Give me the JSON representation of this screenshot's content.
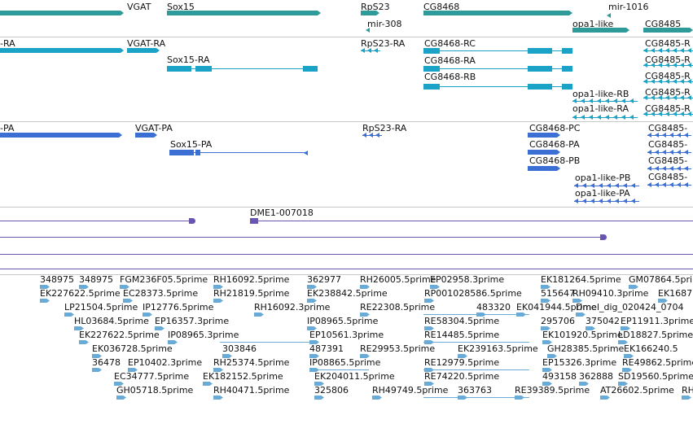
{
  "colors": {
    "genes": "#2e9a9a",
    "mrna": "#1aa3c6",
    "protein": "#3b6fd4",
    "misc": "#6a55b0",
    "est": "#6aaad6"
  },
  "tracks": {
    "genes": {
      "features": [
        {
          "name": "VGAT",
          "label": "VGAT"
        },
        {
          "name": "Sox15",
          "label": "Sox15"
        },
        {
          "name": "RpS23",
          "label": "RpS23"
        },
        {
          "name": "mir-308",
          "label": "mir-308"
        },
        {
          "name": "CG8468",
          "label": "CG8468"
        },
        {
          "name": "mir-1016",
          "label": "mir-1016"
        },
        {
          "name": "opa1-like",
          "label": "opa1-like"
        },
        {
          "name": "CG8485",
          "label": "CG8485"
        }
      ]
    },
    "transcripts": {
      "features": [
        {
          "name": "cut-ra",
          "label": "-RA"
        },
        {
          "name": "VGAT-RA",
          "label": "VGAT-RA"
        },
        {
          "name": "Sox15-RA",
          "label": "Sox15-RA"
        },
        {
          "name": "RpS23-RA",
          "label": "RpS23-RA"
        },
        {
          "name": "CG8468-RC",
          "label": "CG8468-RC"
        },
        {
          "name": "CG8468-RA",
          "label": "CG8468-RA"
        },
        {
          "name": "CG8468-RB",
          "label": "CG8468-RB"
        },
        {
          "name": "opa1-like-RB",
          "label": "opa1-like-RB"
        },
        {
          "name": "opa1-like-RA",
          "label": "opa1-like-RA"
        },
        {
          "name": "CG8485-1",
          "label": "CG8485-R"
        },
        {
          "name": "CG8485-2",
          "label": "CG8485-R"
        },
        {
          "name": "CG8485-3",
          "label": "CG8485-R"
        },
        {
          "name": "CG8485-4",
          "label": "CG8485-R"
        },
        {
          "name": "CG8485-5",
          "label": "CG8485-R"
        }
      ]
    },
    "proteins": {
      "features": [
        {
          "name": "cut-pa",
          "label": "-PA"
        },
        {
          "name": "VGAT-PA",
          "label": "VGAT-PA"
        },
        {
          "name": "Sox15-PA",
          "label": "Sox15-PA"
        },
        {
          "name": "RpS23-RA-p",
          "label": "RpS23-RA"
        },
        {
          "name": "CG8468-PC",
          "label": "CG8468-PC"
        },
        {
          "name": "CG8468-PA",
          "label": "CG8468-PA"
        },
        {
          "name": "CG8468-PB",
          "label": "CG8468-PB"
        },
        {
          "name": "opa1-like-PB",
          "label": "opa1-like-PB"
        },
        {
          "name": "opa1-like-PA",
          "label": "opa1-like-PA"
        },
        {
          "name": "CG8485-p1",
          "label": "CG8485-"
        },
        {
          "name": "CG8485-p2",
          "label": "CG8485-"
        },
        {
          "name": "CG8485-p3",
          "label": "CG8485-"
        },
        {
          "name": "CG8485-p4",
          "label": "CG8485-"
        }
      ]
    },
    "misc": {
      "features": [
        {
          "name": "DME1-007018",
          "label": "DME1-007018"
        }
      ]
    },
    "est": {
      "features": [
        {
          "name": "e1",
          "label": "348975"
        },
        {
          "name": "e2",
          "label": "348975"
        },
        {
          "name": "e3",
          "label": "FGM236F05.5prime"
        },
        {
          "name": "e4",
          "label": "RH16092.5prime"
        },
        {
          "name": "e5",
          "label": "362977"
        },
        {
          "name": "e6",
          "label": "RH26005.5prime"
        },
        {
          "name": "e7",
          "label": "EP02958.3prime"
        },
        {
          "name": "e8",
          "label": "EK181264.5prime"
        },
        {
          "name": "e9",
          "label": "GM07864.5prime"
        },
        {
          "name": "e10",
          "label": "EK227622.5prime"
        },
        {
          "name": "e11",
          "label": "EC28373.5prime"
        },
        {
          "name": "e12",
          "label": "RH21819.5prime"
        },
        {
          "name": "e13",
          "label": "EK238842.5prime"
        },
        {
          "name": "e14",
          "label": "RP001028586.5prime"
        },
        {
          "name": "e15",
          "label": "515647"
        },
        {
          "name": "e16",
          "label": "RH09410.3prime"
        },
        {
          "name": "e17",
          "label": "EK1687"
        },
        {
          "name": "e18",
          "label": "LP21504.5prime"
        },
        {
          "name": "e19",
          "label": "IP12776.5prime"
        },
        {
          "name": "e20",
          "label": "RH16092.3prime"
        },
        {
          "name": "e21",
          "label": "RE22308.5prime"
        },
        {
          "name": "e22",
          "label": "483320"
        },
        {
          "name": "e23",
          "label": "EK041944.5prime"
        },
        {
          "name": "e24",
          "label": "Dmel_dig_020424_0704"
        },
        {
          "name": "e25",
          "label": "HL03684.5prime"
        },
        {
          "name": "e26",
          "label": "EP16357.3prime"
        },
        {
          "name": "e27",
          "label": "IP08965.5prime"
        },
        {
          "name": "e28",
          "label": "RE58304.5prime"
        },
        {
          "name": "e29",
          "label": "295706"
        },
        {
          "name": "e30",
          "label": "375042"
        },
        {
          "name": "e31",
          "label": "EP11911.3prime"
        },
        {
          "name": "e32",
          "label": "EK227622.5prime"
        },
        {
          "name": "e33",
          "label": "IP08965.3prime"
        },
        {
          "name": "e34",
          "label": "EP10561.3prime"
        },
        {
          "name": "e35",
          "label": "RE14485.5prime"
        },
        {
          "name": "e36",
          "label": "EK101920.5prime"
        },
        {
          "name": "e37",
          "label": "LD18827.5prime"
        },
        {
          "name": "e38",
          "label": "EK036728.5prime"
        },
        {
          "name": "e39",
          "label": "303846"
        },
        {
          "name": "e40",
          "label": "487391"
        },
        {
          "name": "e41",
          "label": "RE29953.5prime"
        },
        {
          "name": "e42",
          "label": "EK239163.5prime"
        },
        {
          "name": "e43",
          "label": "GH28385.5prime"
        },
        {
          "name": "e44",
          "label": "EK166240.5"
        },
        {
          "name": "e45",
          "label": "36478"
        },
        {
          "name": "e46",
          "label": "EP10402.3prime"
        },
        {
          "name": "e47",
          "label": "RH25374.5prime"
        },
        {
          "name": "e48",
          "label": "IP08865.5prime"
        },
        {
          "name": "e49",
          "label": "RE12979.5prime"
        },
        {
          "name": "e50",
          "label": "EP15326.3prime"
        },
        {
          "name": "e51",
          "label": "RE49862.5prime"
        },
        {
          "name": "e52",
          "label": "EC34777.5prime"
        },
        {
          "name": "e53",
          "label": "EK182152.5prime"
        },
        {
          "name": "e54",
          "label": "EK204011.5prime"
        },
        {
          "name": "e55",
          "label": "RE74220.5prime"
        },
        {
          "name": "e56",
          "label": "493158"
        },
        {
          "name": "e57",
          "label": "362888"
        },
        {
          "name": "e58",
          "label": "SD19560.5prime"
        },
        {
          "name": "e59",
          "label": "GH05718.5prime"
        },
        {
          "name": "e60",
          "label": "RH40471.5prime"
        },
        {
          "name": "e61",
          "label": "325806"
        },
        {
          "name": "e62",
          "label": "RH49749.5prime"
        },
        {
          "name": "e63",
          "label": "363763"
        },
        {
          "name": "e64",
          "label": "RE39389.5prime"
        },
        {
          "name": "e65",
          "label": "AT26602.5prime"
        },
        {
          "name": "e66",
          "label": "RH"
        }
      ]
    }
  }
}
